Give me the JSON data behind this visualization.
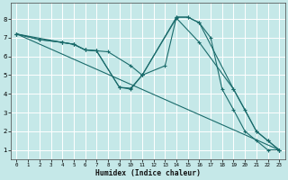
{
  "xlabel": "Humidex (Indice chaleur)",
  "bg_color": "#c5e8e8",
  "grid_color": "#ffffff",
  "line_color": "#1a6b6b",
  "xlim": [
    -0.5,
    23.5
  ],
  "ylim": [
    0.5,
    8.85
  ],
  "xticks": [
    0,
    1,
    2,
    3,
    4,
    5,
    6,
    7,
    8,
    9,
    10,
    11,
    12,
    13,
    14,
    15,
    16,
    17,
    18,
    19,
    20,
    21,
    22,
    23
  ],
  "yticks": [
    1,
    2,
    3,
    4,
    5,
    6,
    7,
    8
  ],
  "line1_x": [
    0,
    2,
    4,
    5,
    6,
    7,
    8,
    10,
    11,
    14,
    15,
    16,
    17,
    18,
    19,
    20,
    21,
    22,
    23
  ],
  "line1_y": [
    7.2,
    6.9,
    6.75,
    6.65,
    6.35,
    6.3,
    6.25,
    5.5,
    5.0,
    8.1,
    8.1,
    7.8,
    7.0,
    4.25,
    3.15,
    2.0,
    1.5,
    1.0,
    1.0
  ],
  "line2_x": [
    0,
    2,
    4,
    5,
    6,
    7,
    9,
    10,
    11,
    13,
    14,
    15,
    16,
    19,
    20,
    21,
    22,
    23
  ],
  "line2_y": [
    7.2,
    6.9,
    6.75,
    6.65,
    6.35,
    6.3,
    4.35,
    4.3,
    5.0,
    5.5,
    8.1,
    8.1,
    7.8,
    4.25,
    3.15,
    2.0,
    1.5,
    1.0
  ],
  "line3_x": [
    0,
    4,
    5,
    6,
    7,
    9,
    10,
    11,
    14,
    16,
    19,
    21,
    22,
    23
  ],
  "line3_y": [
    7.2,
    6.75,
    6.65,
    6.35,
    6.3,
    4.35,
    4.25,
    5.0,
    8.05,
    6.75,
    4.25,
    2.0,
    1.5,
    1.0
  ],
  "line4_x": [
    0,
    23
  ],
  "line4_y": [
    7.2,
    1.0
  ]
}
